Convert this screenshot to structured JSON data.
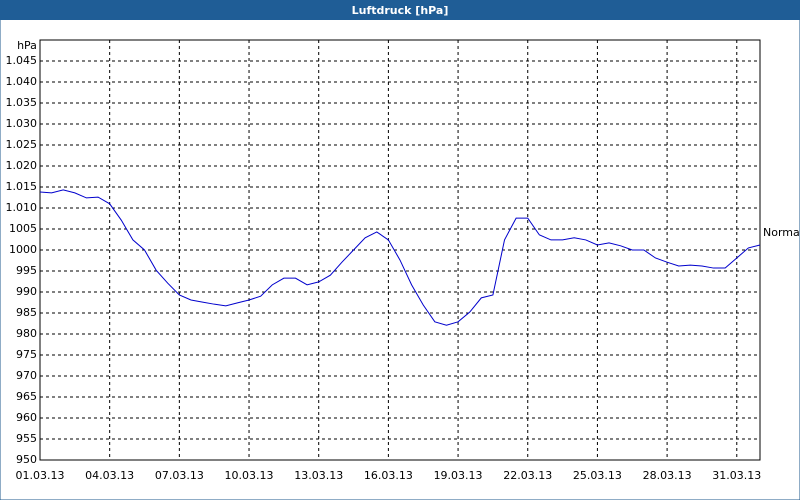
{
  "chart_data": {
    "type": "line",
    "title": "Luftdruck [hPa]",
    "y_unit": "hPa",
    "annotation": "Normal",
    "xlim": [
      0,
      31
    ],
    "xticks": [
      {
        "value": 0,
        "label": "01.03.13"
      },
      {
        "value": 3,
        "label": "04.03.13"
      },
      {
        "value": 6,
        "label": "07.03.13"
      },
      {
        "value": 9,
        "label": "10.03.13"
      },
      {
        "value": 12,
        "label": "13.03.13"
      },
      {
        "value": 15,
        "label": "16.03.13"
      },
      {
        "value": 18,
        "label": "19.03.13"
      },
      {
        "value": 21,
        "label": "22.03.13"
      },
      {
        "value": 24,
        "label": "25.03.13"
      },
      {
        "value": 27,
        "label": "28.03.13"
      },
      {
        "value": 30,
        "label": "31.03.13"
      }
    ],
    "ylim": [
      950,
      1050
    ],
    "yticks": [
      950,
      955,
      960,
      965,
      970,
      975,
      980,
      985,
      990,
      995,
      1000,
      1005,
      {
        "value": 1010,
        "label": "1.010"
      },
      {
        "value": 1015,
        "label": "1.015"
      },
      {
        "value": 1020,
        "label": "1.020"
      },
      {
        "value": 1025,
        "label": "1.025"
      },
      {
        "value": 1030,
        "label": "1.030"
      },
      {
        "value": 1035,
        "label": "1.035"
      },
      {
        "value": 1040,
        "label": "1.040"
      },
      {
        "value": 1045,
        "label": "1.045"
      }
    ],
    "grid": true,
    "x": [
      0,
      0.5,
      1,
      1.5,
      2,
      2.5,
      3,
      3.5,
      4,
      4.5,
      5,
      5.5,
      6,
      6.5,
      7,
      7.5,
      8,
      8.5,
      9,
      9.5,
      10,
      10.5,
      11,
      11.5,
      12,
      12.5,
      13,
      13.5,
      14,
      14.5,
      15,
      15.5,
      16,
      16.5,
      17,
      17.5,
      18,
      18.5,
      19,
      19.5,
      20,
      20.5,
      21,
      21.5,
      22,
      22.5,
      23,
      23.5,
      24,
      24.5,
      25,
      25.5,
      26,
      26.5,
      27,
      27.5,
      28,
      28.5,
      29,
      29.5,
      30,
      30.5,
      31
    ],
    "series": [
      {
        "name": "Luftdruck",
        "color": "#0000cc",
        "values": [
          1013.8,
          1013.6,
          1014.3,
          1013.6,
          1012.4,
          1012.6,
          1011,
          1007.1,
          1002.4,
          1000,
          995.2,
          992.1,
          989.3,
          988.1,
          987.6,
          987.1,
          986.7,
          987.4,
          988.1,
          989,
          991.7,
          993.3,
          993.3,
          991.7,
          992.4,
          994,
          997.1,
          1000,
          1002.9,
          1004.3,
          1002.4,
          997.6,
          991.7,
          986.9,
          982.9,
          982.1,
          982.9,
          985.2,
          988.6,
          989.3,
          1002.4,
          1007.6,
          1007.6,
          1003.6,
          1002.4,
          1002.4,
          1002.9,
          1002.4,
          1001.2,
          1001.7,
          1001,
          1000,
          1000,
          998.1,
          997.1,
          996.2,
          996.4,
          996.2,
          995.7,
          995.7,
          998.1,
          1000.5,
          1001.2
        ]
      }
    ]
  }
}
